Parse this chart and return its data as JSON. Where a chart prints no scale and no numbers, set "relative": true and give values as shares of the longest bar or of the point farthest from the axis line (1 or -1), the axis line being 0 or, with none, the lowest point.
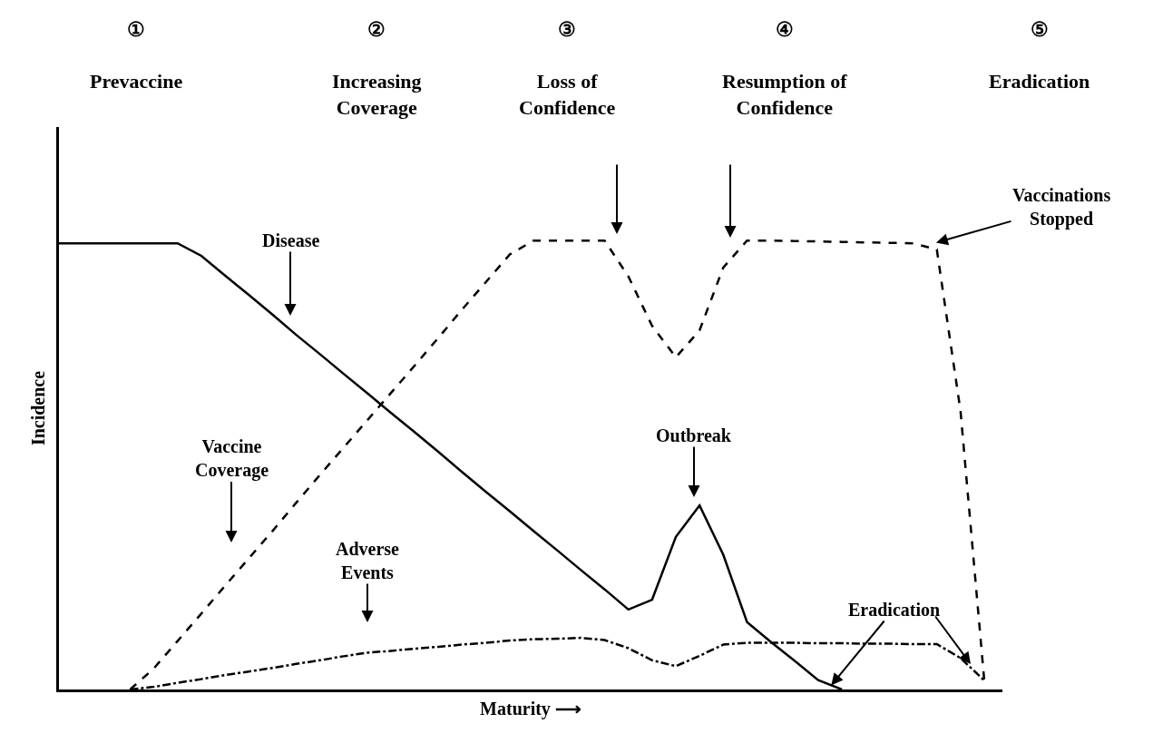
{
  "chart_data": {
    "type": "line",
    "relative": true,
    "xlabel": "Maturity ⟶",
    "ylabel": "Incidence",
    "tick_labels": false,
    "marker": "none",
    "categories": [
      null,
      null,
      null,
      null,
      null,
      null,
      null,
      null,
      null,
      null,
      null,
      null,
      null,
      null,
      null,
      null,
      null,
      null,
      null,
      null,
      null,
      null,
      null,
      null,
      null,
      null,
      null,
      null,
      null,
      null,
      null,
      null,
      null,
      null,
      null,
      null,
      null,
      null,
      null,
      null
    ],
    "series": [
      {
        "color": "#000000",
        "line_style": "solid",
        "values": [
          0.994,
          0.994,
          0.994,
          0.994,
          0.994,
          0.994,
          0.966,
          0.922,
          0.879,
          0.835,
          0.79,
          0.747,
          0.703,
          0.66,
          0.616,
          0.573,
          0.529,
          0.484,
          0.44,
          0.397,
          0.353,
          0.31,
          0.266,
          0.223,
          0.178,
          0.2,
          0.34,
          0.41,
          0.3,
          0.15,
          0.106,
          0.064,
          0.021,
          0,
          null,
          null,
          null,
          null,
          null,
          null
        ]
      },
      {
        "color": "#000000",
        "line_style": "dashed",
        "values": [
          null,
          null,
          null,
          0,
          0.047,
          0.108,
          0.169,
          0.231,
          0.292,
          0.353,
          0.416,
          0.478,
          0.539,
          0.6,
          0.661,
          0.722,
          0.784,
          0.847,
          0.908,
          0.969,
          1,
          1,
          1,
          1,
          0.92,
          0.81,
          0.74,
          0.8,
          0.94,
          1,
          1,
          0.999,
          0.998,
          0.997,
          0.996,
          0.995,
          0.994,
          0.98,
          0.62,
          0.02
        ]
      },
      {
        "color": "#000000",
        "line_style": "dashdot",
        "values": [
          null,
          null,
          null,
          0,
          0.006,
          0.015,
          0.023,
          0.032,
          0.04,
          0.048,
          0.057,
          0.065,
          0.074,
          0.082,
          0.086,
          0.091,
          0.095,
          0.1,
          0.104,
          0.109,
          0.112,
          0.113,
          0.115,
          0.11,
          0.092,
          0.065,
          0.052,
          0.075,
          0.1,
          0.104,
          0.104,
          0.104,
          0.103,
          0.103,
          0.102,
          0.102,
          0.101,
          0.101,
          0.07,
          0.02
        ]
      }
    ],
    "annotations": [
      "①\n\nPrevaccine",
      "②\n\nIncreasing\nCoverage",
      "③\n\nLoss of\nConfidence",
      "④\n\nResumption of\nConfidence",
      "⑤\n\nEradication",
      "Disease",
      "Vaccine\nCoverage",
      "Adverse\nEvents",
      "Outbreak",
      "Eradication",
      "Vaccinations\nStopped"
    ]
  }
}
